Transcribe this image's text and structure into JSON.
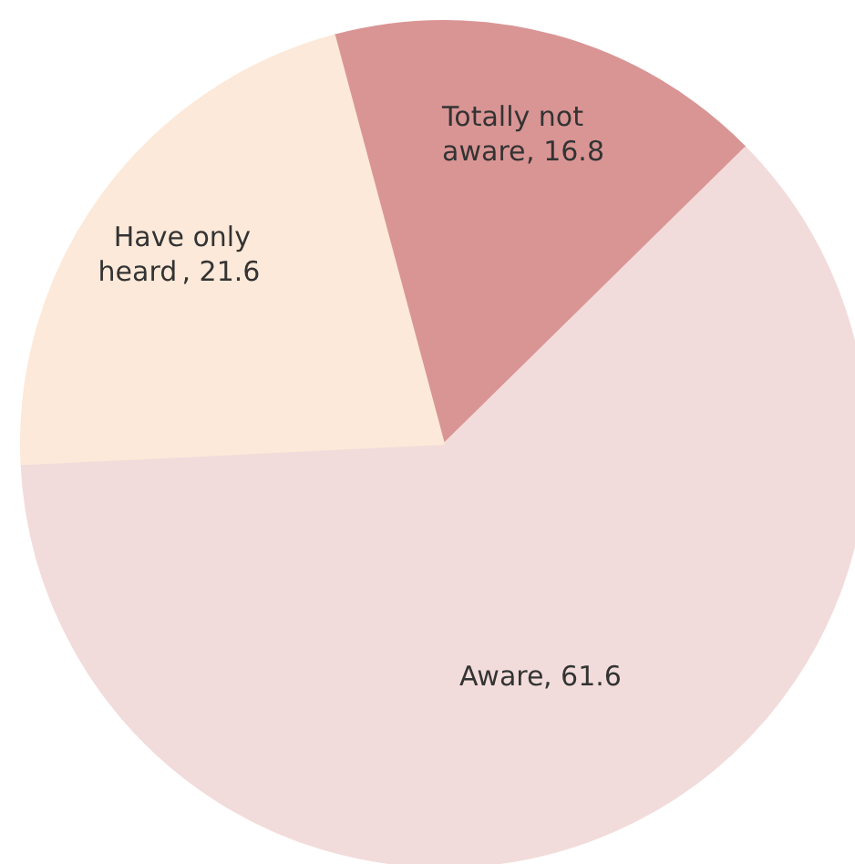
{
  "chart_data": {
    "type": "pie",
    "categories": [
      "Totally not aware",
      "Aware",
      "Have only heard"
    ],
    "values": [
      16.8,
      61.6,
      21.6
    ],
    "colors": [
      "#d99594",
      "#f2dcdb",
      "#fde9d9"
    ],
    "value_labels": [
      ", 16.8",
      ", 61.6",
      ", 21.6"
    ]
  }
}
